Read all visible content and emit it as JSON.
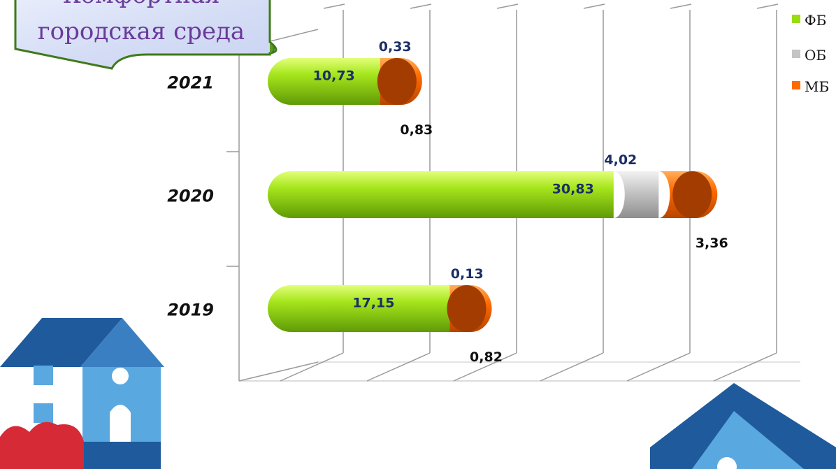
{
  "banner": {
    "line1": "Комфортная",
    "line2": "городская среда"
  },
  "colors": {
    "fb": "#99dd11",
    "ob": "#c4c4c4",
    "mb": "#ff6a00",
    "fb_label": "#1a2e66",
    "ob_label": "#1a2e66",
    "mb_label": "#111111"
  },
  "chart_data": {
    "type": "bar",
    "orientation": "horizontal",
    "stacked": true,
    "style": "3d-cylinder",
    "categories": [
      "2021",
      "2020",
      "2019"
    ],
    "series": [
      {
        "name": "ФБ",
        "values": [
          10.73,
          30.83,
          17.15
        ],
        "labels": [
          "10,73",
          "30,83",
          "17,15"
        ]
      },
      {
        "name": "ОБ",
        "values": [
          0.33,
          4.02,
          0.13
        ],
        "labels": [
          "0,33",
          "4,02",
          "0,13"
        ]
      },
      {
        "name": "МБ",
        "values": [
          0.83,
          3.36,
          0.82
        ],
        "labels": [
          "0,83",
          "3,36",
          "0,82"
        ]
      }
    ],
    "legend": {
      "position": "top-right",
      "items": [
        "ФБ",
        "ОБ",
        "МБ"
      ]
    },
    "grid": true,
    "title": "",
    "xlabel": "",
    "ylabel": ""
  }
}
